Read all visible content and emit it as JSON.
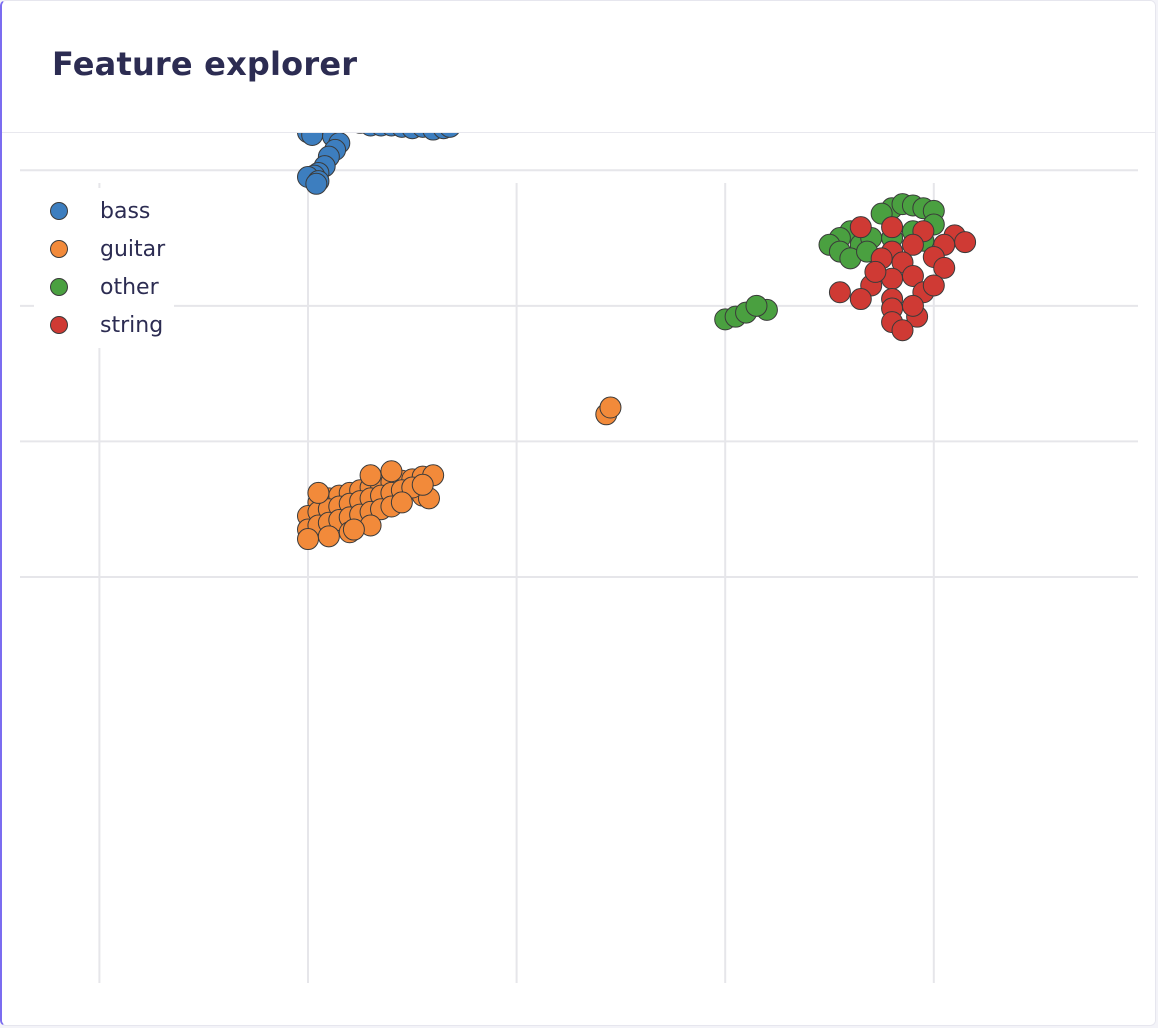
{
  "card": {
    "title": "Feature explorer"
  },
  "legend": [
    {
      "label": "bass",
      "color": "#3d7ebf"
    },
    {
      "label": "guitar",
      "color": "#f28a3a"
    },
    {
      "label": "other",
      "color": "#4aa040"
    },
    {
      "label": "string",
      "color": "#cf3a34"
    }
  ],
  "chart_data": {
    "type": "scatter",
    "title": "",
    "xlabel": "",
    "ylabel": "",
    "grid": true,
    "tick_labels": false,
    "legend_position": "top-left",
    "xlim": [
      -1.5,
      4
    ],
    "ylim": [
      -1.5,
      4
    ],
    "series": [
      {
        "name": "bass",
        "color": "#3d7ebf",
        "points": [
          [
            0.0,
            3.45
          ],
          [
            0.02,
            3.4
          ],
          [
            0.05,
            3.43
          ],
          [
            0.08,
            3.38
          ],
          [
            0.12,
            3.36
          ],
          [
            0.15,
            3.38
          ],
          [
            0.2,
            3.36
          ],
          [
            0.25,
            3.35
          ],
          [
            0.3,
            3.33
          ],
          [
            0.35,
            3.33
          ],
          [
            0.4,
            3.33
          ],
          [
            0.45,
            3.32
          ],
          [
            0.5,
            3.31
          ],
          [
            0.55,
            3.32
          ],
          [
            0.6,
            3.3
          ],
          [
            0.65,
            3.31
          ],
          [
            0.68,
            3.32
          ],
          [
            0.0,
            3.3
          ],
          [
            0.0,
            3.28
          ],
          [
            0.02,
            3.26
          ],
          [
            0.12,
            3.25
          ],
          [
            0.15,
            3.2
          ],
          [
            0.13,
            3.15
          ],
          [
            0.1,
            3.1
          ],
          [
            0.08,
            3.03
          ],
          [
            0.05,
            2.98
          ],
          [
            0.03,
            2.96
          ],
          [
            0.0,
            2.95
          ],
          [
            0.05,
            2.92
          ],
          [
            0.04,
            2.9
          ]
        ]
      },
      {
        "name": "guitar",
        "color": "#f28a3a",
        "points": [
          [
            1.43,
            1.2
          ],
          [
            1.45,
            1.25
          ],
          [
            0.55,
            0.6
          ],
          [
            0.58,
            0.58
          ],
          [
            0.05,
            0.55
          ],
          [
            0.1,
            0.58
          ],
          [
            0.15,
            0.6
          ],
          [
            0.2,
            0.62
          ],
          [
            0.25,
            0.64
          ],
          [
            0.3,
            0.66
          ],
          [
            0.35,
            0.68
          ],
          [
            0.4,
            0.7
          ],
          [
            0.45,
            0.71
          ],
          [
            0.5,
            0.72
          ],
          [
            0.55,
            0.74
          ],
          [
            0.6,
            0.75
          ],
          [
            0.0,
            0.45
          ],
          [
            0.05,
            0.48
          ],
          [
            0.1,
            0.5
          ],
          [
            0.15,
            0.52
          ],
          [
            0.2,
            0.54
          ],
          [
            0.25,
            0.56
          ],
          [
            0.3,
            0.58
          ],
          [
            0.35,
            0.6
          ],
          [
            0.4,
            0.62
          ],
          [
            0.45,
            0.64
          ],
          [
            0.5,
            0.66
          ],
          [
            0.55,
            0.68
          ],
          [
            0.0,
            0.35
          ],
          [
            0.05,
            0.38
          ],
          [
            0.1,
            0.4
          ],
          [
            0.15,
            0.42
          ],
          [
            0.2,
            0.44
          ],
          [
            0.25,
            0.46
          ],
          [
            0.3,
            0.48
          ],
          [
            0.35,
            0.5
          ],
          [
            0.4,
            0.52
          ],
          [
            0.45,
            0.55
          ],
          [
            0.0,
            0.28
          ],
          [
            0.1,
            0.3
          ],
          [
            0.2,
            0.33
          ],
          [
            0.3,
            0.38
          ],
          [
            0.05,
            0.62
          ],
          [
            0.3,
            0.75
          ],
          [
            0.4,
            0.78
          ],
          [
            0.22,
            0.35
          ]
        ]
      },
      {
        "name": "other",
        "color": "#4aa040",
        "points": [
          [
            2.0,
            1.9
          ],
          [
            2.05,
            1.92
          ],
          [
            2.1,
            1.95
          ],
          [
            2.2,
            1.97
          ],
          [
            2.15,
            2.0
          ],
          [
            2.8,
            2.72
          ],
          [
            2.85,
            2.75
          ],
          [
            2.9,
            2.74
          ],
          [
            2.95,
            2.72
          ],
          [
            3.0,
            2.7
          ],
          [
            2.75,
            2.68
          ],
          [
            2.6,
            2.55
          ],
          [
            2.55,
            2.5
          ],
          [
            2.65,
            2.45
          ],
          [
            2.7,
            2.5
          ],
          [
            2.8,
            2.5
          ],
          [
            2.9,
            2.55
          ],
          [
            3.0,
            2.6
          ],
          [
            2.5,
            2.45
          ],
          [
            2.55,
            2.4
          ],
          [
            2.6,
            2.35
          ],
          [
            2.68,
            2.4
          ],
          [
            2.95,
            2.48
          ]
        ]
      },
      {
        "name": "string",
        "color": "#cf3a34",
        "points": [
          [
            2.65,
            2.58
          ],
          [
            2.8,
            2.58
          ],
          [
            2.95,
            2.55
          ],
          [
            3.1,
            2.52
          ],
          [
            3.15,
            2.47
          ],
          [
            3.05,
            2.45
          ],
          [
            2.9,
            2.45
          ],
          [
            2.8,
            2.4
          ],
          [
            2.75,
            2.35
          ],
          [
            2.85,
            2.32
          ],
          [
            3.0,
            2.36
          ],
          [
            3.05,
            2.28
          ],
          [
            2.9,
            2.22
          ],
          [
            2.8,
            2.2
          ],
          [
            2.7,
            2.15
          ],
          [
            2.55,
            2.1
          ],
          [
            2.65,
            2.05
          ],
          [
            2.8,
            2.05
          ],
          [
            2.95,
            2.1
          ],
          [
            3.0,
            2.15
          ],
          [
            2.8,
            1.98
          ],
          [
            2.92,
            1.92
          ],
          [
            2.8,
            1.88
          ],
          [
            2.85,
            1.82
          ],
          [
            2.72,
            2.25
          ],
          [
            2.9,
            2.0
          ]
        ]
      }
    ]
  }
}
